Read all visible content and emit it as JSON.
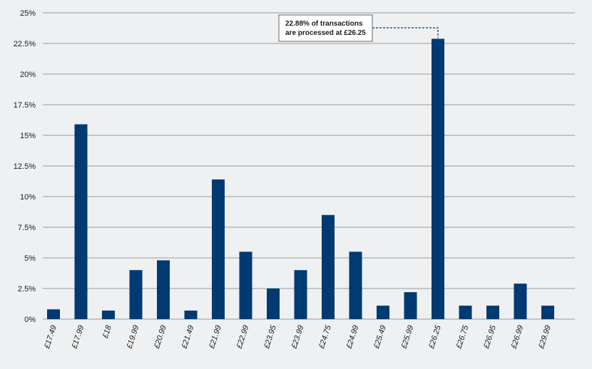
{
  "chart_data": {
    "type": "bar",
    "categories": [
      "£17.49",
      "£17.99",
      "£18",
      "£19.99",
      "£20.99",
      "£21.49",
      "£21.99",
      "£22.99",
      "£23.95",
      "£23.99",
      "£24.75",
      "£24.99",
      "£25.49",
      "£25.99",
      "£26.25",
      "£26.75",
      "£26.95",
      "£26.99",
      "£29.99"
    ],
    "values": [
      0.8,
      15.9,
      0.7,
      4.0,
      4.8,
      0.7,
      11.4,
      5.5,
      2.5,
      4.0,
      8.5,
      5.5,
      1.1,
      2.2,
      22.88,
      1.1,
      1.1,
      2.9,
      1.1
    ],
    "y_ticks": [
      "0%",
      "2.5%",
      "5%",
      "7.5%",
      "10%",
      "12.5%",
      "15%",
      "17.5%",
      "20%",
      "22.5%",
      "25%"
    ],
    "ylim": [
      0,
      25
    ],
    "grid": true,
    "title": "",
    "xlabel": "",
    "ylabel": "",
    "annotation": {
      "category": "£26.25",
      "line1": "22.88% of transactions",
      "line2": "are processed at £26.25"
    },
    "colors": {
      "bar": "#003a73",
      "plot_background": "#eef0f2",
      "grid": "#9a9a9a",
      "callout_line": "#003a73"
    }
  }
}
